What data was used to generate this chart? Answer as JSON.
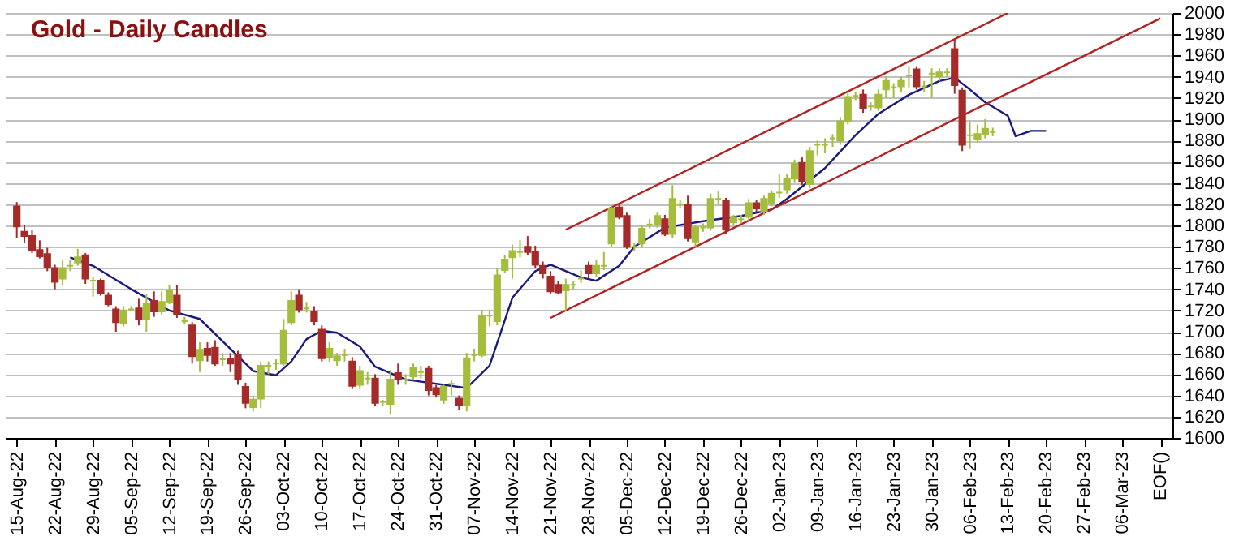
{
  "chart_data": {
    "type": "candlestick",
    "title": "Gold - Daily Candles",
    "categories": [
      "15-Aug-22",
      null,
      null,
      null,
      null,
      "22-Aug-22",
      null,
      null,
      null,
      null,
      "29-Aug-22",
      null,
      null,
      null,
      null,
      "05-Sep-22",
      null,
      null,
      null,
      null,
      "12-Sep-22",
      null,
      null,
      null,
      null,
      "19-Sep-22",
      null,
      null,
      null,
      null,
      "26-Sep-22",
      null,
      null,
      null,
      null,
      "03-Oct-22",
      null,
      null,
      null,
      null,
      "10-Oct-22",
      null,
      null,
      null,
      null,
      "17-Oct-22",
      null,
      null,
      null,
      null,
      "24-Oct-22",
      null,
      null,
      null,
      null,
      "31-Oct-22",
      null,
      null,
      null,
      null,
      "07-Nov-22",
      null,
      null,
      null,
      null,
      "14-Nov-22",
      null,
      null,
      null,
      null,
      "21-Nov-22",
      null,
      null,
      null,
      null,
      "28-Nov-22",
      null,
      null,
      null,
      null,
      "05-Dec-22",
      null,
      null,
      null,
      null,
      "12-Dec-22",
      null,
      null,
      null,
      null,
      "19-Dec-22",
      null,
      null,
      null,
      null,
      "26-Dec-22",
      null,
      null,
      null,
      null,
      "02-Jan-23",
      null,
      null,
      null,
      null,
      "09-Jan-23",
      null,
      null,
      null,
      null,
      "16-Jan-23",
      null,
      null,
      null,
      null,
      "23-Jan-23",
      null,
      null,
      null,
      null,
      "30-Jan-23",
      null,
      null,
      null,
      null,
      "06-Feb-23",
      null,
      null,
      null,
      null,
      "13-Feb-23",
      null,
      null,
      null,
      null,
      "20-Feb-23",
      null,
      null,
      null,
      null,
      "27-Feb-23",
      null,
      null,
      null,
      null,
      "06-Mar-23",
      null,
      null,
      null,
      null,
      "EOF()"
    ],
    "series": [
      {
        "type": "line",
        "color": "#1a1a80",
        "values": [
          null,
          null,
          null,
          null,
          null,
          null,
          null,
          1770,
          null,
          null,
          1762,
          null,
          null,
          null,
          null,
          1740,
          null,
          null,
          null,
          null,
          1720,
          null,
          null,
          null,
          1712,
          null,
          null,
          1691,
          null,
          null,
          null,
          1663,
          null,
          null,
          1659,
          null,
          1672,
          null,
          1693,
          null,
          1701,
          null,
          1699,
          null,
          null,
          1686,
          null,
          1667,
          null,
          null,
          null,
          1655,
          null,
          null,
          null,
          null,
          1650,
          null,
          null,
          1647,
          null,
          null,
          1668,
          null,
          null,
          1732,
          null,
          null,
          1757,
          null,
          1763,
          null,
          null,
          null,
          1751,
          null,
          1748,
          null,
          null,
          1762,
          null,
          1780,
          null,
          null,
          null,
          1798,
          null,
          null,
          null,
          null,
          1804,
          null,
          null,
          null,
          null,
          1809,
          null,
          null,
          null,
          1815,
          null,
          1825,
          null,
          null,
          null,
          null,
          1854,
          null,
          null,
          null,
          1885,
          null,
          null,
          1905,
          null,
          null,
          null,
          1923,
          null,
          null,
          null,
          1936,
          null,
          1939,
          null,
          1928,
          null,
          1916,
          null,
          null,
          1903,
          1884,
          null,
          1889,
          null,
          1889,
          null,
          null,
          null,
          null,
          null,
          null,
          null,
          null,
          null,
          null,
          null,
          null,
          null,
          null,
          null
        ]
      },
      {
        "type": "line",
        "color": "#b22222",
        "values": [
          null,
          null,
          null,
          null,
          null,
          null,
          null,
          null,
          null,
          null,
          null,
          null,
          null,
          null,
          null,
          null,
          null,
          null,
          null,
          null,
          null,
          null,
          null,
          null,
          null,
          null,
          null,
          null,
          null,
          null,
          null,
          null,
          null,
          null,
          null,
          null,
          null,
          null,
          null,
          null,
          null,
          null,
          null,
          null,
          null,
          null,
          null,
          null,
          null,
          null,
          null,
          null,
          null,
          null,
          null,
          null,
          null,
          null,
          null,
          null,
          null,
          null,
          null,
          null,
          null,
          null,
          null,
          null,
          null,
          null,
          null,
          null,
          1796,
          null,
          null,
          null,
          null,
          null,
          null,
          null,
          null,
          null,
          null,
          null,
          null,
          null,
          null,
          null,
          null,
          null,
          null,
          null,
          null,
          null,
          null,
          null,
          null,
          null,
          null,
          null,
          null,
          null,
          null,
          null,
          null,
          null,
          null,
          null,
          null,
          null,
          null,
          null,
          null,
          null,
          null,
          null,
          null,
          null,
          null,
          null,
          null,
          null,
          null,
          null,
          null,
          null,
          null,
          null,
          null,
          null,
          2000,
          null,
          null,
          null,
          null,
          null,
          null,
          null,
          null,
          null,
          null,
          null,
          null,
          null,
          null,
          null,
          null,
          null,
          null,
          null,
          null
        ]
      },
      {
        "type": "line",
        "color": "#b22222",
        "values": [
          null,
          null,
          null,
          null,
          null,
          null,
          null,
          null,
          null,
          null,
          null,
          null,
          null,
          null,
          null,
          null,
          null,
          null,
          null,
          null,
          null,
          null,
          null,
          null,
          null,
          null,
          null,
          null,
          null,
          null,
          null,
          null,
          null,
          null,
          null,
          null,
          null,
          null,
          null,
          null,
          null,
          null,
          null,
          null,
          null,
          null,
          null,
          null,
          null,
          null,
          null,
          null,
          null,
          null,
          null,
          null,
          null,
          null,
          null,
          null,
          null,
          null,
          null,
          null,
          null,
          null,
          null,
          null,
          null,
          null,
          1713,
          null,
          null,
          null,
          null,
          null,
          null,
          null,
          null,
          null,
          null,
          null,
          null,
          null,
          null,
          null,
          null,
          null,
          null,
          null,
          null,
          null,
          null,
          null,
          null,
          null,
          null,
          null,
          null,
          null,
          null,
          null,
          null,
          null,
          null,
          null,
          null,
          null,
          null,
          null,
          null,
          null,
          null,
          null,
          null,
          null,
          null,
          null,
          null,
          null,
          null,
          null,
          null,
          null,
          null,
          null,
          null,
          null,
          null,
          null,
          null,
          null,
          null,
          null,
          null,
          null,
          null,
          null,
          null,
          null,
          null,
          null,
          null,
          null,
          null,
          null,
          null,
          null,
          null,
          null,
          1995
        ]
      },
      {
        "type": "candlestick",
        "colors": [
          "#a52a2a",
          "#a52a2a",
          "#a52a2a",
          "#a52a2a",
          "#a52a2a",
          "#a52a2a",
          "#a4bd3c",
          "#a4bd3c",
          "#a4bd3c",
          "#a52a2a",
          "#a4bd3c",
          "#a52a2a",
          "#a52a2a",
          "#a52a2a",
          "#a4bd3c",
          "#a4bd3c",
          "#a52a2a",
          "#a4bd3c",
          "#a52a2a",
          "#a4bd3c",
          "#a4bd3c",
          "#a52a2a",
          "#a4bd3c",
          "#a52a2a",
          "#a4bd3c",
          "#a52a2a",
          "#a52a2a",
          "#a4bd3c",
          "#a52a2a",
          "#a52a2a",
          "#a52a2a",
          "#a4bd3c",
          "#a4bd3c",
          "#a4bd3c",
          "#a4bd3c",
          "#a4bd3c",
          "#a4bd3c",
          "#a52a2a",
          "#a4bd3c",
          "#a52a2a",
          "#a52a2a",
          "#a4bd3c",
          "#a4bd3c",
          "#a4bd3c",
          "#a52a2a",
          "#a4bd3c",
          "#a4bd3c",
          "#a52a2a",
          "#a4bd3c",
          "#a4bd3c",
          "#a52a2a",
          "#a4bd3c",
          "#a4bd3c",
          "#a4bd3c",
          "#a52a2a",
          "#a52a2a",
          "#a4bd3c",
          "#a4bd3c",
          "#a52a2a",
          "#a4bd3c",
          "#a4bd3c",
          "#a4bd3c",
          "#a4bd3c",
          "#a4bd3c",
          "#a4bd3c",
          "#a4bd3c",
          "#a4bd3c",
          "#a52a2a",
          "#a52a2a",
          "#a52a2a",
          "#a52a2a",
          "#a52a2a",
          "#a4bd3c",
          "#a4bd3c",
          "#a4bd3c",
          "#a52a2a",
          "#a4bd3c",
          "#a4bd3c",
          "#a4bd3c",
          "#a52a2a",
          "#a52a2a",
          "#a4bd3c",
          "#a4bd3c",
          "#a4bd3c",
          "#a4bd3c",
          "#a52a2a",
          "#a4bd3c",
          "#a4bd3c",
          "#a52a2a",
          "#a4bd3c",
          "#a4bd3c",
          "#a4bd3c",
          "#a4bd3c",
          "#a52a2a",
          "#a4bd3c",
          "#a4bd3c",
          "#a4bd3c",
          "#a52a2a",
          "#a4bd3c",
          "#a4bd3c",
          "#a4bd3c",
          "#a4bd3c",
          "#a4bd3c",
          "#a52a2a",
          "#a4bd3c",
          "#a4bd3c",
          "#a4bd3c",
          "#a4bd3c",
          "#a4bd3c",
          "#a4bd3c",
          "#a4bd3c",
          "#a52a2a",
          "#a4bd3c",
          "#a4bd3c",
          "#a4bd3c",
          "#a4bd3c",
          "#a4bd3c",
          "#a4bd3c",
          "#a52a2a",
          "#a4bd3c",
          "#a4bd3c",
          "#a4bd3c",
          "#a4bd3c",
          "#a52a2a",
          "#a52a2a",
          "#a4bd3c",
          "#a4bd3c",
          "#a4bd3c",
          "#a4bd3c",
          null,
          null,
          null,
          null,
          null,
          null,
          null,
          null,
          null,
          null,
          null,
          null,
          null,
          null,
          null,
          null,
          null,
          null,
          null,
          null,
          null,
          null
        ],
        "ohlc": [
          [
            1818,
            1822,
            1788,
            1799
          ],
          [
            1794,
            1800,
            1784,
            1790
          ],
          [
            1790,
            1796,
            1774,
            1777
          ],
          [
            1777,
            1786,
            1769,
            1771
          ],
          [
            1773,
            1779,
            1757,
            1761
          ],
          [
            1760,
            1763,
            1740,
            1747
          ],
          [
            1750,
            1767,
            1744,
            1760
          ],
          [
            1762,
            1768,
            1757,
            1762
          ],
          [
            1765,
            1778,
            1762,
            1770
          ],
          [
            1772,
            1774,
            1745,
            1750
          ],
          [
            1748,
            1752,
            1733,
            1748
          ],
          [
            1748,
            1750,
            1734,
            1736
          ],
          [
            1734,
            1737,
            1724,
            1726
          ],
          [
            1721,
            1724,
            1700,
            1709
          ],
          [
            1708,
            1724,
            1705,
            1720
          ],
          [
            1721,
            1724,
            1719,
            1721
          ],
          [
            1722,
            1731,
            1706,
            1712
          ],
          [
            1712,
            1735,
            1700,
            1726
          ],
          [
            1729,
            1738,
            1714,
            1719
          ],
          [
            1719,
            1738,
            1716,
            1728
          ],
          [
            1728,
            1744,
            1726,
            1739
          ],
          [
            1734,
            1744,
            1713,
            1716
          ],
          [
            1710,
            1714,
            1707,
            1710
          ],
          [
            1706,
            1709,
            1670,
            1677
          ],
          [
            1673,
            1690,
            1662,
            1683
          ],
          [
            1684,
            1690,
            1672,
            1678
          ],
          [
            1685,
            1692,
            1668,
            1670
          ],
          [
            1674,
            1680,
            1668,
            1674
          ],
          [
            1674,
            1680,
            1662,
            1670
          ],
          [
            1678,
            1682,
            1650,
            1655
          ],
          [
            1648,
            1652,
            1628,
            1633
          ],
          [
            1629,
            1640,
            1625,
            1636
          ],
          [
            1637,
            1672,
            1628,
            1668
          ],
          [
            1668,
            1672,
            1660,
            1668
          ],
          [
            1670,
            1674,
            1664,
            1670
          ],
          [
            1670,
            1712,
            1668,
            1701
          ],
          [
            1709,
            1738,
            1706,
            1729
          ],
          [
            1734,
            1740,
            1718,
            1721
          ],
          [
            1722,
            1728,
            1718,
            1722
          ],
          [
            1719,
            1724,
            1706,
            1710
          ],
          [
            1702,
            1706,
            1672,
            1675
          ],
          [
            1676,
            1690,
            1672,
            1684
          ],
          [
            1673,
            1680,
            1668,
            1677
          ],
          [
            1678,
            1684,
            1672,
            1678
          ],
          [
            1672,
            1676,
            1646,
            1649
          ],
          [
            1650,
            1668,
            1646,
            1663
          ],
          [
            1656,
            1662,
            1650,
            1656
          ],
          [
            1656,
            1660,
            1630,
            1633
          ],
          [
            1634,
            1636,
            1630,
            1634
          ],
          [
            1632,
            1664,
            1622,
            1655
          ],
          [
            1661,
            1670,
            1650,
            1655
          ],
          [
            1655,
            1660,
            1650,
            1655
          ],
          [
            1658,
            1670,
            1654,
            1666
          ],
          [
            1662,
            1668,
            1656,
            1662
          ],
          [
            1665,
            1668,
            1640,
            1645
          ],
          [
            1647,
            1650,
            1638,
            1641
          ],
          [
            1636,
            1650,
            1632,
            1648
          ],
          [
            1651,
            1654,
            1640,
            1651
          ],
          [
            1637,
            1640,
            1626,
            1631
          ],
          [
            1631,
            1680,
            1625,
            1675
          ],
          [
            1678,
            1684,
            1672,
            1678
          ],
          [
            1678,
            1720,
            1676,
            1715
          ],
          [
            1715,
            1720,
            1705,
            1715
          ],
          [
            1710,
            1760,
            1706,
            1753
          ],
          [
            1758,
            1772,
            1755,
            1768
          ],
          [
            1770,
            1782,
            1750,
            1776
          ],
          [
            1775,
            1786,
            1770,
            1775
          ],
          [
            1780,
            1790,
            1772,
            1775
          ],
          [
            1775,
            1781,
            1760,
            1763
          ],
          [
            1762,
            1766,
            1750,
            1755
          ],
          [
            1752,
            1757,
            1735,
            1738
          ],
          [
            1744,
            1748,
            1735,
            1737
          ],
          [
            1739,
            1750,
            1720,
            1744
          ],
          [
            1744,
            1748,
            1740,
            1744
          ],
          [
            1750,
            1758,
            1746,
            1750
          ],
          [
            1762,
            1766,
            1750,
            1755
          ],
          [
            1755,
            1768,
            1752,
            1762
          ],
          [
            1762,
            1775,
            1758,
            1762
          ],
          [
            1783,
            1818,
            1780,
            1816
          ],
          [
            1817,
            1820,
            1806,
            1808
          ],
          [
            1809,
            1812,
            1778,
            1780
          ],
          [
            1780,
            1784,
            1776,
            1780
          ],
          [
            1783,
            1800,
            1780,
            1797
          ],
          [
            1801,
            1806,
            1797,
            1801
          ],
          [
            1801,
            1812,
            1798,
            1809
          ],
          [
            1806,
            1810,
            1790,
            1792
          ],
          [
            1792,
            1838,
            1788,
            1825
          ],
          [
            1820,
            1824,
            1816,
            1820
          ],
          [
            1819,
            1828,
            1785,
            1788
          ],
          [
            1785,
            1800,
            1780,
            1798
          ],
          [
            1798,
            1802,
            1794,
            1798
          ],
          [
            1798,
            1830,
            1795,
            1825
          ],
          [
            1825,
            1832,
            1820,
            1825
          ],
          [
            1823,
            1826,
            1792,
            1796
          ],
          [
            1803,
            1810,
            1800,
            1808
          ],
          [
            1806,
            1810,
            1802,
            1806
          ],
          [
            1808,
            1825,
            1804,
            1821
          ],
          [
            1821,
            1824,
            1812,
            1816
          ],
          [
            1813,
            1828,
            1810,
            1825
          ],
          [
            1821,
            1833,
            1818,
            1830
          ],
          [
            1831,
            1848,
            1826,
            1831
          ],
          [
            1834,
            1848,
            1830,
            1844
          ],
          [
            1844,
            1862,
            1840,
            1858
          ],
          [
            1859,
            1864,
            1838,
            1842
          ],
          [
            1839,
            1874,
            1835,
            1870
          ],
          [
            1876,
            1880,
            1866,
            1876
          ],
          [
            1876,
            1882,
            1868,
            1876
          ],
          [
            1882,
            1886,
            1874,
            1882
          ],
          [
            1880,
            1902,
            1876,
            1898
          ],
          [
            1898,
            1925,
            1895,
            1921
          ],
          [
            1922,
            1926,
            1918,
            1922
          ],
          [
            1923,
            1928,
            1906,
            1910
          ],
          [
            1912,
            1916,
            1908,
            1912
          ],
          [
            1911,
            1928,
            1908,
            1923
          ],
          [
            1928,
            1940,
            1920,
            1936
          ],
          [
            1930,
            1934,
            1920,
            1930
          ],
          [
            1931,
            1940,
            1926,
            1936
          ],
          [
            1941,
            1950,
            1930,
            1941
          ],
          [
            1947,
            1950,
            1928,
            1931
          ],
          [
            1931,
            1936,
            1926,
            1931
          ],
          [
            1943,
            1948,
            1920,
            1943
          ],
          [
            1940,
            1948,
            1936,
            1944
          ],
          [
            1944,
            1948,
            1940,
            1944
          ],
          [
            1966,
            1975,
            1924,
            1932
          ],
          [
            1927,
            1930,
            1870,
            1876
          ],
          [
            1885,
            1898,
            1872,
            1885
          ],
          [
            1881,
            1895,
            1878,
            1886
          ],
          [
            1886,
            1900,
            1882,
            1891
          ],
          [
            1888,
            1892,
            1884,
            1888
          ],
          null,
          null,
          null,
          null,
          null,
          null,
          null,
          null,
          null,
          null,
          null,
          null,
          null,
          null,
          null,
          null,
          null,
          null,
          null,
          null,
          null,
          null
        ]
      }
    ],
    "ylim": [
      1600,
      2000
    ],
    "yticks": [
      1600,
      1620,
      1640,
      1660,
      1680,
      1700,
      1720,
      1740,
      1760,
      1780,
      1800,
      1820,
      1840,
      1860,
      1880,
      1900,
      1920,
      1940,
      1960,
      1980,
      2000
    ],
    "grid": "y"
  }
}
